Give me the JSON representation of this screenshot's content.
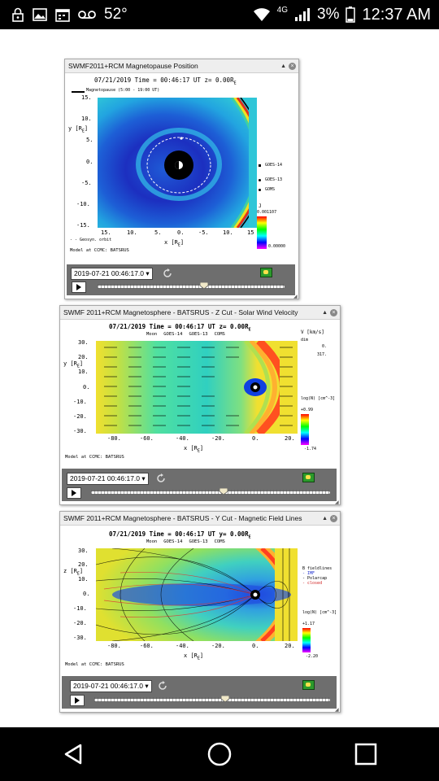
{
  "status_bar": {
    "temperature": "52°",
    "network": "4G",
    "battery": "3%",
    "time": "12:37 AM",
    "icons": [
      "lock-icon",
      "image-icon",
      "calendar-icon",
      "voicemail-icon",
      "wifi-icon",
      "signal-icon",
      "battery-icon"
    ]
  },
  "panels": [
    {
      "title": "SWMF2011+RCM Magnetopause Position",
      "plot_header": "07/21/2019 Time = 00:46:17 UT z= 0.00R",
      "legend_line": "Magnetopause (5:00 - 19:00 UT)",
      "ylabel": "y [R",
      "xlabel": "x [R",
      "yticks": [
        "15.",
        "10.",
        "5.",
        "0.",
        "-5.",
        "-10.",
        "-15."
      ],
      "xticks": [
        "15.",
        "10.",
        "5.",
        "0.",
        "-5.",
        "10.",
        "15"
      ],
      "sat_labels": [
        "GOES-14",
        "GOES-13",
        "GOMS"
      ],
      "colorbar_top": "0.001107",
      "colorbar_bottom": "0.00000",
      "colorbar_label": "J",
      "footer1": "Model at CCMC: BATSRUS",
      "footer2": "- - Geosyn. orbit",
      "timestamp": "2019-07-21 00:46:17.0",
      "slider_fraction": 0.52
    },
    {
      "title": "SWMF 2011+RCM Magnetosphere - BATSRUS - Z Cut - Solar Wind Velocity",
      "plot_header": "07/21/2019 Time = 00:46:17 UT z= 0.00R",
      "sat_line": [
        "Moon",
        "GOES-14",
        "GOES-13",
        "COMS"
      ],
      "ylabel": "y [R",
      "xlabel": "x [R",
      "yticks": [
        "30.",
        "20.",
        "10.",
        "0.",
        "-10.",
        "-20.",
        "-30."
      ],
      "xticks": [
        "-80.",
        "-60.",
        "-40.",
        "-20.",
        "0.",
        "20."
      ],
      "vector_label": "V [km/s]",
      "vector_lines": [
        "dim",
        "0.",
        "317."
      ],
      "colorbar_label": "log(N) [cm^-3]",
      "colorbar_top": "+0.99",
      "colorbar_bottom": "-1.74",
      "footer1": "Model at CCMC: BATSRUS",
      "timestamp": "2019-07-21 00:46:17.0",
      "slider_fraction": 0.55
    },
    {
      "title": "SWMF 2011+RCM Magnetosphere - BATSRUS - Y Cut - Magnetic Field Lines",
      "plot_header": "07/21/2019 Time = 00:46:17 UT y= 0.00R",
      "sat_line": [
        "Moon",
        "GOES-14",
        "GOES-13",
        "COMS"
      ],
      "ylabel": "z [R",
      "xlabel": "x [R",
      "yticks": [
        "30.",
        "20.",
        "10.",
        "0.",
        "-10.",
        "-20.",
        "-30."
      ],
      "xticks": [
        "-80.",
        "-60.",
        "-40.",
        "-20.",
        "0.",
        "20."
      ],
      "legend_items": [
        "B fieldlines",
        "- IMF",
        "- Polarcap",
        "- closed"
      ],
      "colorbar_label": "log(N) [cm^-3]",
      "colorbar_top": "+1.17",
      "colorbar_bottom": "-2.20",
      "footer1": "Model at CCMC: BATSRUS",
      "timestamp": "2019-07-21 00:46:17.0",
      "slider_fraction": 0.55
    }
  ],
  "colors": {
    "status_bg": "#000000",
    "panel_control_bg": "#6e6e6e",
    "accent_flag": "#2c9a2c"
  },
  "nav": {
    "back": "back-icon",
    "home": "home-icon",
    "recents": "recents-icon"
  }
}
